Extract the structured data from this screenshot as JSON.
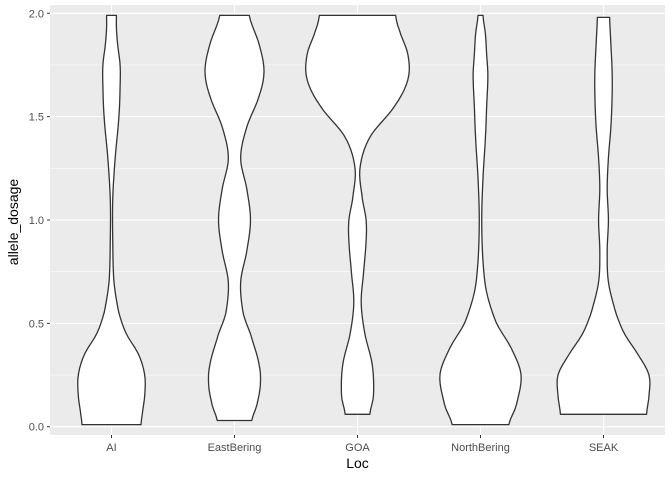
{
  "chart_data": {
    "type": "violin",
    "title": "",
    "xlabel": "Loc",
    "ylabel": "allele_dosage",
    "ylim": [
      -0.04,
      2.04
    ],
    "yticks": [
      0.0,
      0.5,
      1.0,
      1.5,
      2.0
    ],
    "ytick_labels": [
      "0.0",
      "0.5",
      "1.0",
      "1.5",
      "2.0"
    ],
    "grid": true,
    "legend": "none",
    "colors": {
      "panel": "#ebebeb",
      "grid": "#ffffff",
      "fill": "#ffffff",
      "outline": "#333333"
    },
    "categories": [
      "AI",
      "EastBering",
      "GOA",
      "NorthBering",
      "SEAK"
    ],
    "violins": [
      {
        "name": "AI",
        "ymin": 0.01,
        "ymax": 1.99,
        "profile": [
          [
            0.01,
            0.24
          ],
          [
            0.06,
            0.25
          ],
          [
            0.15,
            0.27
          ],
          [
            0.25,
            0.27
          ],
          [
            0.35,
            0.22
          ],
          [
            0.45,
            0.12
          ],
          [
            0.55,
            0.06
          ],
          [
            0.7,
            0.02
          ],
          [
            0.9,
            0.01
          ],
          [
            1.1,
            0.01
          ],
          [
            1.3,
            0.03
          ],
          [
            1.5,
            0.06
          ],
          [
            1.65,
            0.07
          ],
          [
            1.75,
            0.07
          ],
          [
            1.85,
            0.05
          ],
          [
            1.93,
            0.04
          ],
          [
            1.99,
            0.04
          ]
        ]
      },
      {
        "name": "EastBering",
        "ymin": 0.03,
        "ymax": 1.99,
        "profile": [
          [
            0.03,
            0.14
          ],
          [
            0.1,
            0.18
          ],
          [
            0.2,
            0.21
          ],
          [
            0.3,
            0.2
          ],
          [
            0.45,
            0.13
          ],
          [
            0.55,
            0.07
          ],
          [
            0.7,
            0.05
          ],
          [
            0.85,
            0.1
          ],
          [
            1.0,
            0.13
          ],
          [
            1.15,
            0.1
          ],
          [
            1.3,
            0.05
          ],
          [
            1.45,
            0.1
          ],
          [
            1.6,
            0.2
          ],
          [
            1.72,
            0.24
          ],
          [
            1.85,
            0.2
          ],
          [
            1.99,
            0.12
          ]
        ]
      },
      {
        "name": "GOA",
        "ymin": 0.06,
        "ymax": 1.99,
        "profile": [
          [
            0.06,
            0.1
          ],
          [
            0.15,
            0.13
          ],
          [
            0.3,
            0.12
          ],
          [
            0.45,
            0.06
          ],
          [
            0.6,
            0.03
          ],
          [
            0.75,
            0.05
          ],
          [
            0.9,
            0.07
          ],
          [
            1.0,
            0.07
          ],
          [
            1.1,
            0.04
          ],
          [
            1.25,
            0.02
          ],
          [
            1.4,
            0.1
          ],
          [
            1.55,
            0.3
          ],
          [
            1.68,
            0.41
          ],
          [
            1.8,
            0.41
          ],
          [
            1.92,
            0.34
          ],
          [
            1.99,
            0.31
          ]
        ]
      },
      {
        "name": "NorthBering",
        "ymin": 0.01,
        "ymax": 1.99,
        "profile": [
          [
            0.01,
            0.23
          ],
          [
            0.1,
            0.29
          ],
          [
            0.25,
            0.33
          ],
          [
            0.38,
            0.25
          ],
          [
            0.5,
            0.13
          ],
          [
            0.65,
            0.05
          ],
          [
            0.8,
            0.02
          ],
          [
            1.0,
            0.01
          ],
          [
            1.2,
            0.02
          ],
          [
            1.4,
            0.04
          ],
          [
            1.55,
            0.05
          ],
          [
            1.7,
            0.06
          ],
          [
            1.8,
            0.05
          ],
          [
            1.9,
            0.04
          ],
          [
            1.99,
            0.02
          ]
        ]
      },
      {
        "name": "SEAK",
        "ymin": 0.06,
        "ymax": 1.98,
        "profile": [
          [
            0.06,
            0.35
          ],
          [
            0.15,
            0.37
          ],
          [
            0.25,
            0.37
          ],
          [
            0.35,
            0.28
          ],
          [
            0.45,
            0.17
          ],
          [
            0.55,
            0.1
          ],
          [
            0.7,
            0.04
          ],
          [
            0.85,
            0.03
          ],
          [
            1.0,
            0.04
          ],
          [
            1.15,
            0.03
          ],
          [
            1.3,
            0.04
          ],
          [
            1.45,
            0.06
          ],
          [
            1.6,
            0.07
          ],
          [
            1.72,
            0.07
          ],
          [
            1.85,
            0.06
          ],
          [
            1.98,
            0.05
          ]
        ]
      }
    ]
  }
}
